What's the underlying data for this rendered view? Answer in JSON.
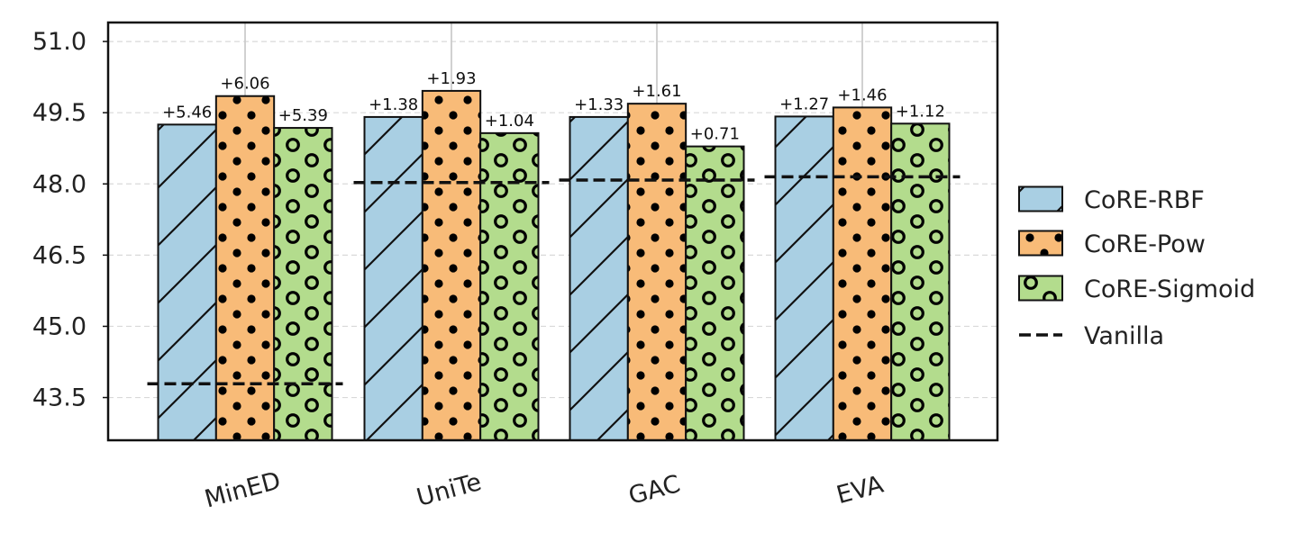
{
  "chart_data": {
    "type": "bar",
    "title": "",
    "xlabel": "",
    "ylabel": "",
    "ylim": [
      42.6,
      51.4
    ],
    "yticks": [
      43.5,
      45.0,
      46.5,
      48.0,
      49.5,
      51.0
    ],
    "ytick_labels": [
      "43.5",
      "45.0",
      "46.5",
      "48.0",
      "49.5",
      "51.0"
    ],
    "grid": true,
    "legend_position": "right",
    "categories": [
      "MinED",
      "UniTe",
      "GAC",
      "EVA"
    ],
    "baseline": {
      "name": "Vanilla",
      "values": [
        43.79,
        48.03,
        48.08,
        48.15
      ]
    },
    "series": [
      {
        "name": "CoRE-RBF",
        "values": [
          49.25,
          49.41,
          49.41,
          49.42
        ],
        "labels": [
          "+5.46",
          "+1.38",
          "+1.33",
          "+1.27"
        ],
        "color": "#a9cfe3",
        "hatch": "diagonal"
      },
      {
        "name": "CoRE-Pow",
        "values": [
          49.85,
          49.96,
          49.69,
          49.61
        ],
        "labels": [
          "+6.06",
          "+1.93",
          "+1.61",
          "+1.46"
        ],
        "color": "#f8bb78",
        "hatch": "dots"
      },
      {
        "name": "CoRE-Sigmoid",
        "values": [
          49.18,
          49.07,
          48.79,
          49.27
        ],
        "labels": [
          "+5.39",
          "+1.04",
          "+0.71",
          "+1.12"
        ],
        "color": "#b3dc8d",
        "hatch": "circles"
      }
    ]
  }
}
